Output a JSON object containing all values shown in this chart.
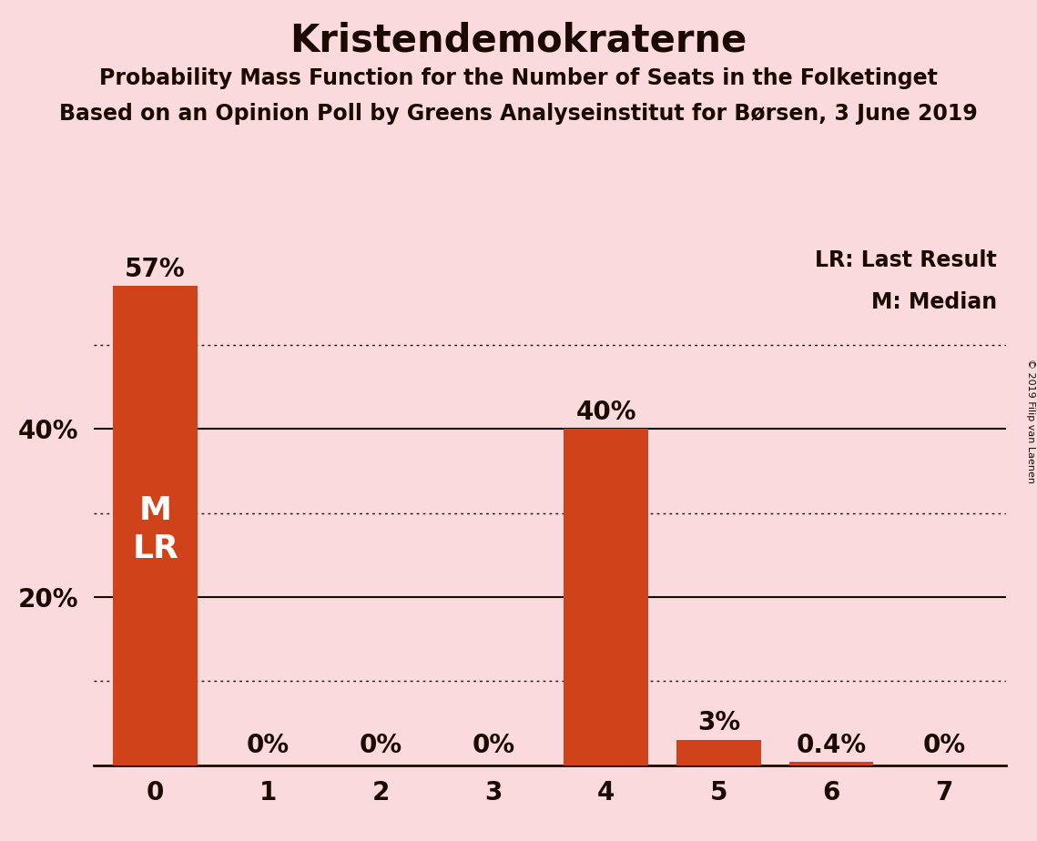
{
  "title": "Kristendemokraterne",
  "subtitle1": "Probability Mass Function for the Number of Seats in the Folketinget",
  "subtitle2": "Based on an Opinion Poll by Greens Analyseinstitut for Børsen, 3 June 2019",
  "copyright": "© 2019 Filip van Laenen",
  "categories": [
    0,
    1,
    2,
    3,
    4,
    5,
    6,
    7
  ],
  "values": [
    57,
    0,
    0,
    0,
    40,
    3,
    0.4,
    0
  ],
  "bar_labels": [
    "57%",
    "0%",
    "0%",
    "0%",
    "40%",
    "3%",
    "0.4%",
    "0%"
  ],
  "bar_color": "#D0431A",
  "background_color": "#FADADD",
  "text_color": "#1a0a00",
  "label_color_inside": "#ffffff",
  "label_color_outside": "#1a0a00",
  "legend_line1": "LR: Last Result",
  "legend_line2": "M: Median",
  "ymax": 62,
  "solid_gridlines": [
    20,
    40
  ],
  "dotted_gridlines": [
    10,
    30,
    50
  ],
  "ytick_positions": [
    20,
    40
  ],
  "ytick_labels": [
    "20%",
    "40%"
  ]
}
